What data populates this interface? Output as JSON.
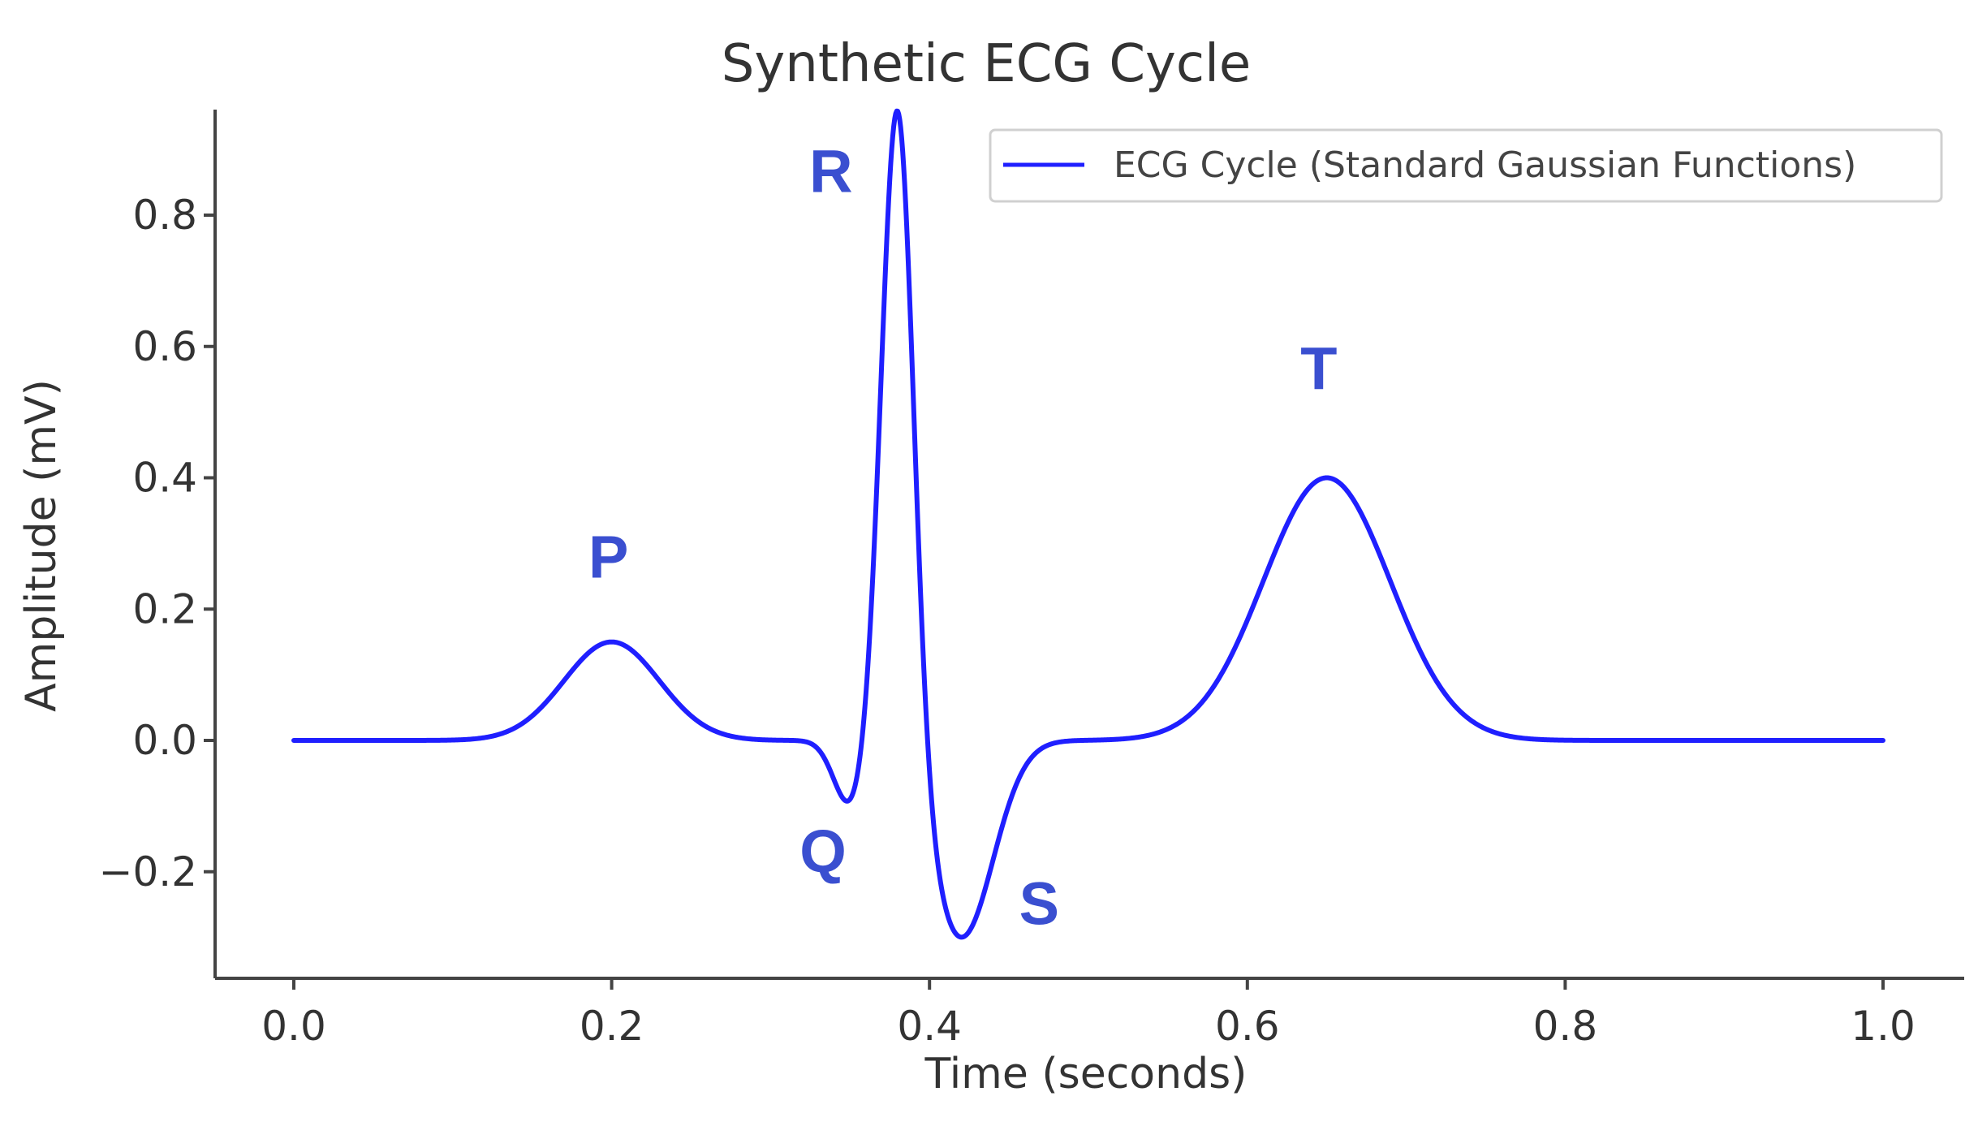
{
  "chart_data": {
    "type": "line",
    "title": "Synthetic ECG Cycle",
    "xlabel": "Time (seconds)",
    "ylabel": "Amplitude (mV)",
    "xlim": [
      -0.05,
      1.05
    ],
    "ylim": [
      -0.36,
      0.96
    ],
    "xticks": [
      0.0,
      0.2,
      0.4,
      0.6,
      0.8,
      1.0
    ],
    "xtick_labels": [
      "0.0",
      "0.2",
      "0.4",
      "0.6",
      "0.8",
      "1.0"
    ],
    "yticks": [
      -0.2,
      0.0,
      0.2,
      0.4,
      0.6,
      0.8
    ],
    "ytick_labels": [
      "−0.2",
      "0.0",
      "0.2",
      "0.4",
      "0.6",
      "0.8"
    ],
    "grid": false,
    "legend_position": "top-right",
    "series": [
      {
        "name": "ECG Cycle (Standard Gaussian Functions)",
        "color": "#1f1fff",
        "components": [
          {
            "wave": "P",
            "amplitude": 0.15,
            "center": 0.2,
            "width": 0.03
          },
          {
            "wave": "Q",
            "amplitude": -0.1,
            "center": 0.35,
            "width": 0.01
          },
          {
            "wave": "R",
            "amplitude": 1.0,
            "center": 0.38,
            "width": 0.01
          },
          {
            "wave": "S",
            "amplitude": -0.3,
            "center": 0.42,
            "width": 0.02
          },
          {
            "wave": "T",
            "amplitude": 0.4,
            "center": 0.65,
            "width": 0.04
          }
        ],
        "x_range": [
          0.0,
          1.0
        ]
      }
    ],
    "annotations": [
      {
        "text": "P",
        "x": 0.198,
        "y": 0.248
      },
      {
        "text": "Q",
        "x": 0.333,
        "y": -0.2
      },
      {
        "text": "R",
        "x": 0.338,
        "y": 0.835
      },
      {
        "text": "S",
        "x": 0.469,
        "y": -0.28
      },
      {
        "text": "T",
        "x": 0.645,
        "y": 0.535
      }
    ],
    "annotation_color": "#3a4fd0"
  }
}
